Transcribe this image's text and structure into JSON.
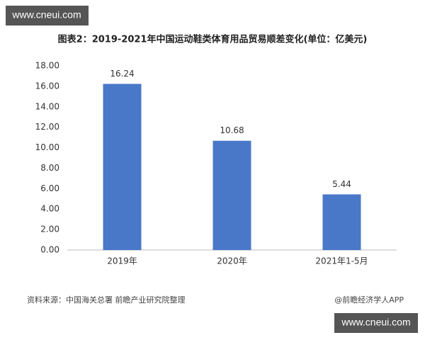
{
  "chart_data": {
    "type": "bar",
    "title": "图表2：2019-2021年中国运动鞋类体育用品贸易顺差变化(单位：亿美元)",
    "categories": [
      "2019年",
      "2020年",
      "2021年1-5月"
    ],
    "values": [
      16.24,
      10.68,
      5.44
    ],
    "color": "#4a78c8",
    "ylim": [
      0,
      18
    ],
    "yticks": [
      {
        "value": 0,
        "label": "0.00"
      },
      {
        "value": 2,
        "label": "2.00"
      },
      {
        "value": 4,
        "label": "4.00"
      },
      {
        "value": 6,
        "label": "6.00"
      },
      {
        "value": 8,
        "label": "8.00"
      },
      {
        "value": 10,
        "label": "10.00"
      },
      {
        "value": 12,
        "label": "12.00"
      },
      {
        "value": 14,
        "label": "14.00"
      },
      {
        "value": 16,
        "label": "16.00"
      },
      {
        "value": 18,
        "label": "18.00"
      }
    ],
    "grid": false,
    "source": "资料来源：中国海关总署 前瞻产业研究院整理",
    "credit": "@前瞻经济学人APP",
    "watermark": "www.cneui.com"
  }
}
